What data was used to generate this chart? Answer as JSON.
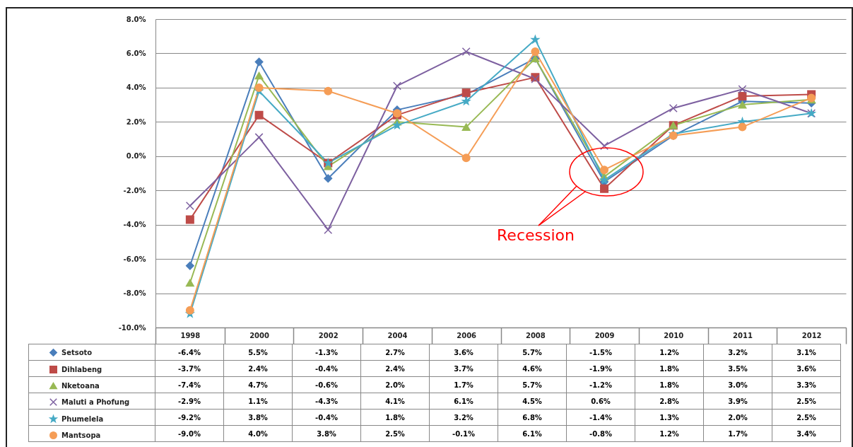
{
  "chart_data": {
    "type": "line",
    "categories": [
      "1998",
      "2000",
      "2002",
      "2004",
      "2006",
      "2008",
      "2009",
      "2010",
      "2011",
      "2012"
    ],
    "series": [
      {
        "name": "Setsoto",
        "color": "#4a7ebb",
        "marker": "diamond",
        "values": [
          -6.4,
          5.5,
          -1.3,
          2.7,
          3.6,
          5.7,
          -1.5,
          1.2,
          3.2,
          3.1
        ],
        "value_labels": [
          "-6.4%",
          "5.5%",
          "-1.3%",
          "2.7%",
          "3.6%",
          "5.7%",
          "-1.5%",
          "1.2%",
          "3.2%",
          "3.1%"
        ]
      },
      {
        "name": "Dihlabeng",
        "color": "#be4b48",
        "marker": "square",
        "values": [
          -3.7,
          2.4,
          -0.4,
          2.4,
          3.7,
          4.6,
          -1.9,
          1.8,
          3.5,
          3.6
        ],
        "value_labels": [
          "-3.7%",
          "2.4%",
          "-0.4%",
          "2.4%",
          "3.7%",
          "4.6%",
          "-1.9%",
          "1.8%",
          "3.5%",
          "3.6%"
        ]
      },
      {
        "name": "Nketoana",
        "color": "#98b954",
        "marker": "triangle",
        "values": [
          -7.4,
          4.7,
          -0.6,
          2.0,
          1.7,
          5.7,
          -1.2,
          1.8,
          3.0,
          3.3
        ],
        "value_labels": [
          "-7.4%",
          "4.7%",
          "-0.6%",
          "2.0%",
          "1.7%",
          "5.7%",
          "-1.2%",
          "1.8%",
          "3.0%",
          "3.3%"
        ]
      },
      {
        "name": "Maluti a Phofung",
        "color": "#7d60a0",
        "marker": "cross",
        "values": [
          -2.9,
          1.1,
          -4.3,
          4.1,
          6.1,
          4.5,
          0.6,
          2.8,
          3.9,
          2.5
        ],
        "value_labels": [
          "-2.9%",
          "1.1%",
          "-4.3%",
          "4.1%",
          "6.1%",
          "4.5%",
          "0.6%",
          "2.8%",
          "3.9%",
          "2.5%"
        ]
      },
      {
        "name": "Phumelela",
        "color": "#46aac5",
        "marker": "star",
        "values": [
          -9.2,
          3.8,
          -0.4,
          1.8,
          3.2,
          6.8,
          -1.4,
          1.3,
          2.0,
          2.5
        ],
        "value_labels": [
          "-9.2%",
          "3.8%",
          "-0.4%",
          "1.8%",
          "3.2%",
          "6.8%",
          "-1.4%",
          "1.3%",
          "2.0%",
          "2.5%"
        ]
      },
      {
        "name": "Mantsopa",
        "color": "#f59d56",
        "marker": "circle",
        "values": [
          -9.0,
          4.0,
          3.8,
          2.5,
          -0.1,
          6.1,
          -0.8,
          1.2,
          1.7,
          3.4
        ],
        "value_labels": [
          "-9.0%",
          "4.0%",
          "3.8%",
          "2.5%",
          "-0.1%",
          "6.1%",
          "-0.8%",
          "1.2%",
          "1.7%",
          "3.4%"
        ]
      }
    ],
    "ylim": [
      -10,
      8
    ],
    "yticks": [
      {
        "value": -10,
        "label": "-10.0%"
      },
      {
        "value": -8,
        "label": "-8.0%"
      },
      {
        "value": -6,
        "label": "-6.0%"
      },
      {
        "value": -4,
        "label": "-4.0%"
      },
      {
        "value": -2,
        "label": "-2.0%"
      },
      {
        "value": 0,
        "label": "0.0%"
      },
      {
        "value": 2,
        "label": "2.0%"
      },
      {
        "value": 4,
        "label": "4.0%"
      },
      {
        "value": 6,
        "label": "6.0%"
      },
      {
        "value": 8,
        "label": "8.0%"
      }
    ],
    "grid": "y",
    "legend": "bottom",
    "annotations": [
      "Recession"
    ]
  }
}
